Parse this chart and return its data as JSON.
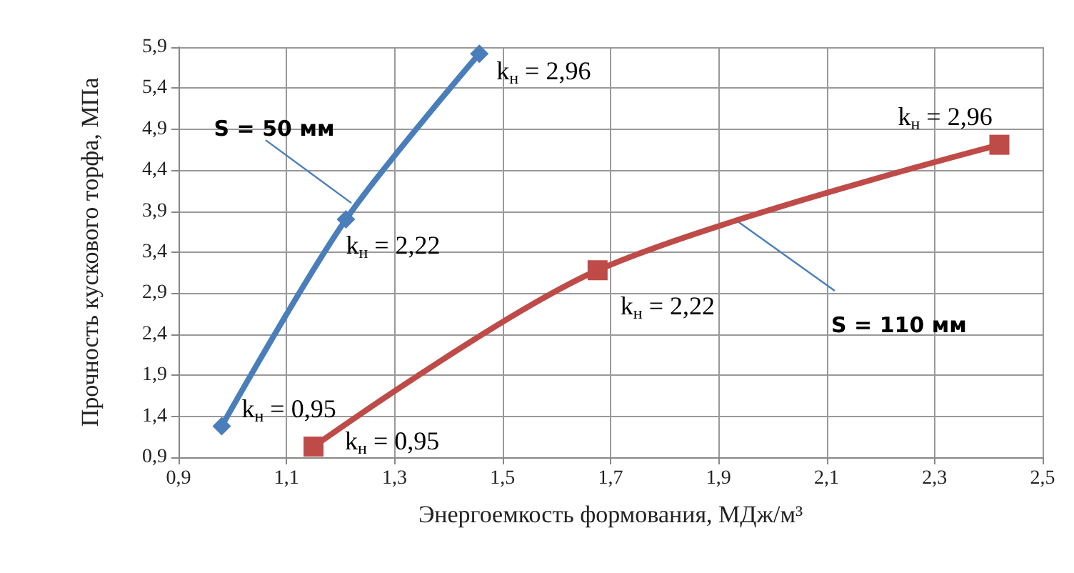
{
  "chart_data": {
    "type": "line",
    "xlabel": "Энергоемкость формования, МДж/м³",
    "ylabel": "Прочность кускового торфа, МПа",
    "series": [
      {
        "color": "#4a7ebb",
        "marker": "diamond",
        "x": [
          0.98,
          1.21,
          1.457
        ],
        "values": [
          1.28,
          3.8,
          5.82
        ]
      },
      {
        "color": "#be4b48",
        "marker": "square",
        "x": [
          1.15,
          1.676,
          2.42
        ],
        "values": [
          1.03,
          3.18,
          4.71
        ]
      }
    ],
    "xlim": [
      0.9,
      2.5
    ],
    "ylim": [
      0.9,
      5.9
    ],
    "xticks": [
      {
        "value": 0.9,
        "label": "0,9"
      },
      {
        "value": 1.1,
        "label": "1,1"
      },
      {
        "value": 1.3,
        "label": "1,3"
      },
      {
        "value": 1.5,
        "label": "1,5"
      },
      {
        "value": 1.7,
        "label": "1,7"
      },
      {
        "value": 1.9,
        "label": "1,9"
      },
      {
        "value": 2.1,
        "label": "2,1"
      },
      {
        "value": 2.3,
        "label": "2,3"
      },
      {
        "value": 2.5,
        "label": "2,5"
      }
    ],
    "yticks": [
      {
        "value": 0.9,
        "label": "0,9"
      },
      {
        "value": 1.4,
        "label": "1,4"
      },
      {
        "value": 1.9,
        "label": "1,9"
      },
      {
        "value": 2.4,
        "label": "2,4"
      },
      {
        "value": 2.9,
        "label": "2,9"
      },
      {
        "value": 3.4,
        "label": "3,4"
      },
      {
        "value": 3.9,
        "label": "3,9"
      },
      {
        "value": 4.4,
        "label": "4,4"
      },
      {
        "value": 4.9,
        "label": "4,9"
      },
      {
        "value": 5.4,
        "label": "5,4"
      },
      {
        "value": 5.9,
        "label": "5,9"
      }
    ],
    "annotations": [
      {
        "text": "k$_{н}$ = 0,95",
        "x": 0.98,
        "y": 1.28
      },
      {
        "text": "k$_{н}$ = 2,22",
        "x": 1.21,
        "y": 3.8
      },
      {
        "text": "k$_{н}$ = 2,96",
        "x": 1.457,
        "y": 5.82
      },
      {
        "text": "k$_{н}$ = 0,95",
        "x": 1.15,
        "y": 1.03
      },
      {
        "text": "k$_{н}$ = 2,22",
        "x": 1.676,
        "y": 3.18
      },
      {
        "text": "k$_{н}$ = 2,96",
        "x": 2.42,
        "y": 4.71
      },
      {
        "text": "S = 50 мм",
        "x": 1.22,
        "y": 4.0
      },
      {
        "text": "S = 110 мм",
        "x": 1.93,
        "y": 3.8
      }
    ],
    "grid": true,
    "line_style": "solid"
  }
}
